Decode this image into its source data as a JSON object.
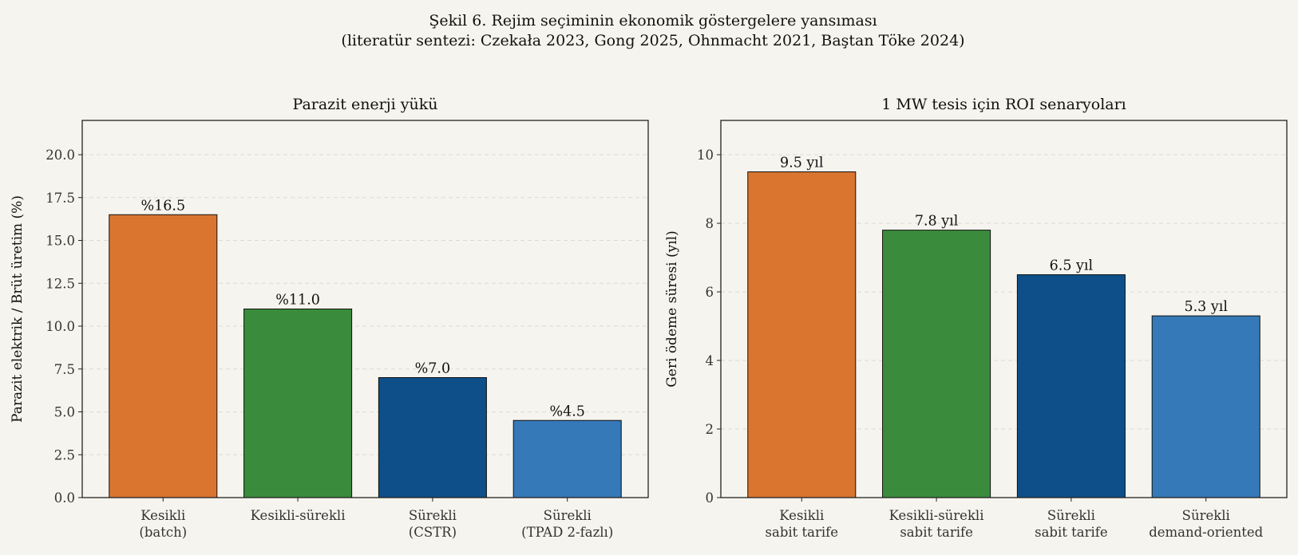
{
  "figure": {
    "title_line1": "Şekil 6. Rejim seçiminin ekonomik göstergelere yansıması",
    "title_line2": "(literatür sentezi: Czekała 2023, Gong 2025, Ohnmacht 2021, Baştan Töke 2024)",
    "background": "#f6f4ee"
  },
  "chart_data": [
    {
      "type": "bar",
      "title": "Parazit enerji yükü",
      "xlabel": "",
      "ylabel": "Parazit elektrik / Brüt üretim (%)",
      "categories": [
        [
          "Kesikli",
          "(batch)"
        ],
        [
          "Kesikli-sürekli"
        ],
        [
          "Sürekli",
          "(CSTR)"
        ],
        [
          "Sürekli",
          "(TPAD 2-fazlı)"
        ]
      ],
      "values": [
        16.5,
        11.0,
        7.0,
        4.5
      ],
      "data_labels": [
        "%16.5",
        "%11.0",
        "%7.0",
        "%4.5"
      ],
      "colors": [
        "#d9752f",
        "#3a8c3c",
        "#0e4f8a",
        "#3579b8"
      ],
      "ylim": [
        0,
        22
      ],
      "yticks": [
        0,
        2.5,
        5,
        7.5,
        10,
        12.5,
        15,
        17.5,
        20
      ],
      "ytick_labels": [
        "0.0",
        "2.5",
        "5.0",
        "7.5",
        "10.0",
        "12.5",
        "15.0",
        "17.5",
        "20.0"
      ],
      "grid": "y, dashed"
    },
    {
      "type": "bar",
      "title": "1 MW tesis için ROI senaryoları",
      "xlabel": "",
      "ylabel": "Geri ödeme süresi (yıl)",
      "categories": [
        [
          "Kesikli",
          "sabit tarife"
        ],
        [
          "Kesikli-sürekli",
          "sabit tarife"
        ],
        [
          "Sürekli",
          "sabit tarife"
        ],
        [
          "Sürekli",
          "demand-oriented"
        ]
      ],
      "values": [
        9.5,
        7.8,
        6.5,
        5.3
      ],
      "data_labels": [
        "9.5 yıl",
        "7.8 yıl",
        "6.5 yıl",
        "5.3 yıl"
      ],
      "colors": [
        "#d9752f",
        "#3a8c3c",
        "#0e4f8a",
        "#3579b8"
      ],
      "ylim": [
        0,
        11
      ],
      "yticks": [
        0,
        2,
        4,
        6,
        8,
        10
      ],
      "ytick_labels": [
        "0",
        "2",
        "4",
        "6",
        "8",
        "10"
      ],
      "grid": "y, dashed"
    }
  ]
}
